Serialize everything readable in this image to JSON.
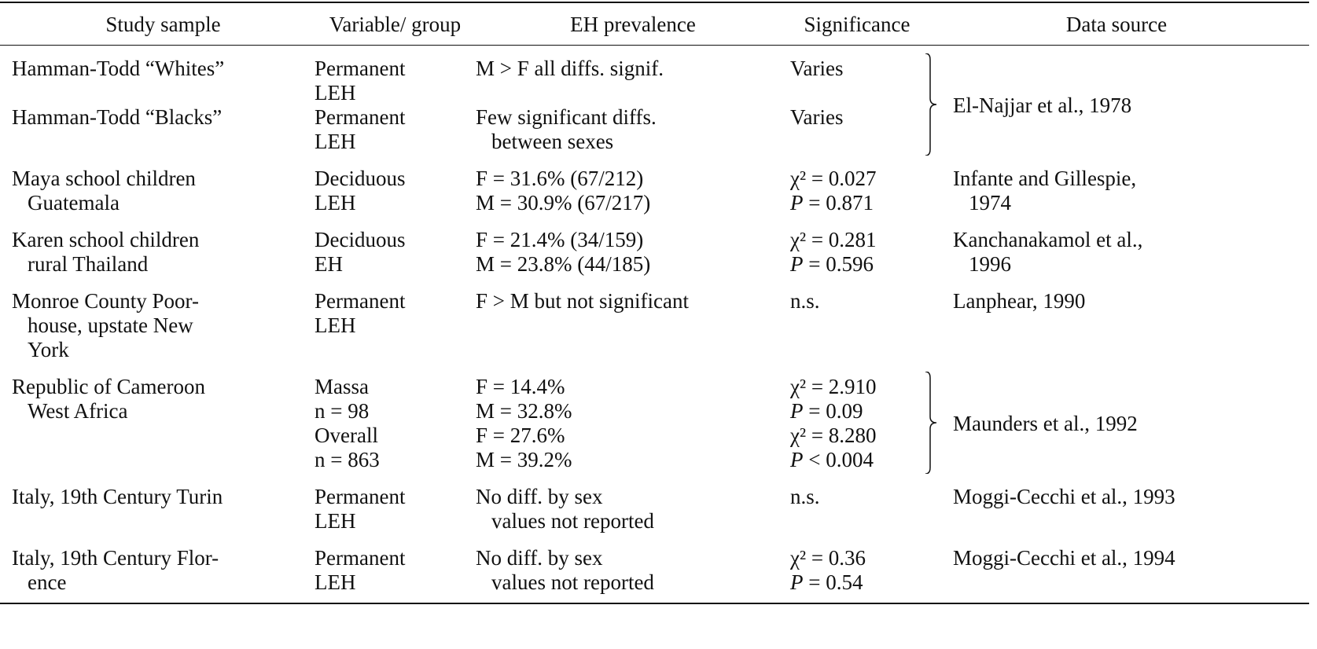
{
  "table": {
    "headers": [
      "Study sample",
      "Variable/ group",
      "EH prevalence",
      "Significance",
      "Data source"
    ],
    "groups": [
      {
        "brace": true,
        "source": [
          "El-Najjar et al., 1978"
        ],
        "rows": [
          {
            "study": [
              "Hamman-Todd “Whites”"
            ],
            "group": [
              "Permanent",
              "LEH"
            ],
            "prevalence": [
              "M > F all diffs. signif."
            ],
            "significance": [
              "Varies"
            ]
          },
          {
            "study": [
              "Hamman-Todd “Blacks”"
            ],
            "group": [
              "Permanent",
              "LEH"
            ],
            "prevalence": [
              "Few significant diffs.",
              "between sexes"
            ],
            "significance": [
              "Varies"
            ]
          }
        ]
      },
      {
        "source": [
          "Infante and Gillespie,",
          "1974"
        ],
        "rows": [
          {
            "study": [
              "Maya school children",
              "Guatemala"
            ],
            "group": [
              "Deciduous",
              "LEH"
            ],
            "prevalence": [
              "F = 31.6% (67/212)",
              "M = 30.9% (67/217)"
            ],
            "significance": [
              "χ² = 0.027",
              "P = 0.871"
            ]
          }
        ]
      },
      {
        "source": [
          "Kanchanakamol et al.,",
          "1996"
        ],
        "rows": [
          {
            "study": [
              "Karen school children",
              "rural Thailand"
            ],
            "group": [
              "Deciduous",
              "EH"
            ],
            "prevalence": [
              "F = 21.4% (34/159)",
              "M = 23.8% (44/185)"
            ],
            "significance": [
              "χ² = 0.281",
              "P = 0.596"
            ]
          }
        ]
      },
      {
        "source": [
          "Lanphear, 1990"
        ],
        "rows": [
          {
            "study": [
              "Monroe County Poor-",
              "house, upstate New",
              "York"
            ],
            "group": [
              "Permanent",
              "LEH"
            ],
            "prevalence": [
              "F > M but not significant"
            ],
            "significance": [
              "n.s."
            ]
          }
        ]
      },
      {
        "brace": true,
        "source": [
          "Maunders et al., 1992"
        ],
        "rows": [
          {
            "study": [
              "Republic of Cameroon",
              "West Africa"
            ],
            "group": [
              "Massa",
              "n = 98",
              "Overall",
              "n = 863"
            ],
            "prevalence": [
              "F = 14.4%",
              "M = 32.8%",
              "F = 27.6%",
              "M = 39.2%"
            ],
            "significance": [
              "χ² = 2.910",
              "P = 0.09",
              "χ² = 8.280",
              "P < 0.004"
            ]
          }
        ]
      },
      {
        "source": [
          "Moggi-Cecchi et al., 1993"
        ],
        "rows": [
          {
            "study": [
              "Italy, 19th Century Turin"
            ],
            "group": [
              "Permanent",
              "LEH"
            ],
            "prevalence": [
              "No diff. by sex",
              "values not reported"
            ],
            "significance": [
              "n.s."
            ]
          }
        ]
      },
      {
        "source": [
          "Moggi-Cecchi et al., 1994"
        ],
        "rows": [
          {
            "study": [
              "Italy, 19th Century Flor-",
              "ence"
            ],
            "group": [
              "Permanent",
              "LEH"
            ],
            "prevalence": [
              "No diff. by sex",
              "values not reported"
            ],
            "significance": [
              "χ² = 0.36",
              "P = 0.54"
            ]
          }
        ]
      }
    ]
  }
}
